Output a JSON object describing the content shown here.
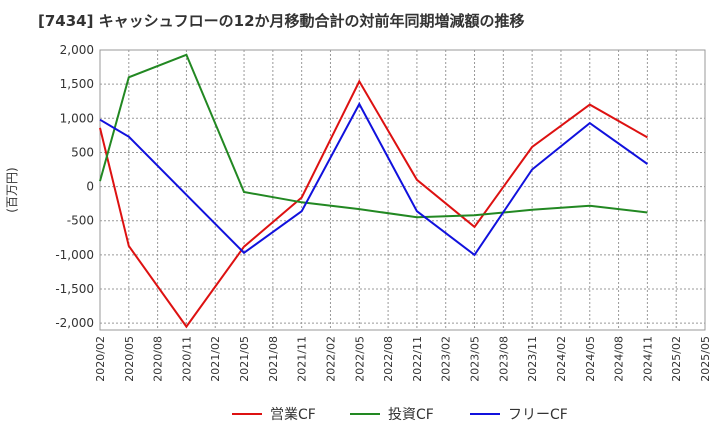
{
  "chart_data": {
    "type": "line",
    "title": "[7434]  キャッシュフローの12か月移動合計の対前年同期増減額の推移",
    "xlabel": "",
    "ylabel": "(百万円)",
    "ylim": [
      -2100,
      2000
    ],
    "yticks": [
      2000,
      1500,
      1000,
      500,
      0,
      -500,
      -1000,
      -1500,
      -2000
    ],
    "ytick_labels": [
      "2,000",
      "1,500",
      "1,000",
      "500",
      "0",
      "-500",
      "-1,000",
      "-1,500",
      "-2,000"
    ],
    "categories": [
      "2020/02",
      "2020/05",
      "2020/08",
      "2020/11",
      "2021/02",
      "2021/05",
      "2021/08",
      "2021/11",
      "2022/02",
      "2022/05",
      "2022/08",
      "2022/11",
      "2023/02",
      "2023/05",
      "2023/08",
      "2023/11",
      "2024/02",
      "2024/05",
      "2024/08",
      "2024/11",
      "2025/02",
      "2025/05"
    ],
    "grid": true,
    "legend_position": "bottom",
    "series": [
      {
        "name": "営業CF",
        "color": "#dd1111",
        "points": [
          [
            0,
            860
          ],
          [
            1,
            -870
          ],
          [
            3,
            -2050
          ],
          [
            5,
            -880
          ],
          [
            7,
            -160
          ],
          [
            9,
            1540
          ],
          [
            11,
            100
          ],
          [
            13,
            -590
          ],
          [
            15,
            580
          ],
          [
            17,
            1200
          ],
          [
            19,
            720
          ]
        ]
      },
      {
        "name": "投資CF",
        "color": "#228822",
        "points": [
          [
            0,
            80
          ],
          [
            1,
            1600
          ],
          [
            3,
            1930
          ],
          [
            5,
            -80
          ],
          [
            7,
            -230
          ],
          [
            9,
            -330
          ],
          [
            11,
            -450
          ],
          [
            13,
            -420
          ],
          [
            15,
            -340
          ],
          [
            17,
            -280
          ],
          [
            19,
            -380
          ]
        ]
      },
      {
        "name": "フリーCF",
        "color": "#1111dd",
        "points": [
          [
            0,
            980
          ],
          [
            1,
            730
          ],
          [
            3,
            -120
          ],
          [
            5,
            -970
          ],
          [
            7,
            -360
          ],
          [
            9,
            1210
          ],
          [
            11,
            -360
          ],
          [
            13,
            -1000
          ],
          [
            15,
            250
          ],
          [
            17,
            930
          ],
          [
            19,
            330
          ]
        ]
      }
    ]
  }
}
